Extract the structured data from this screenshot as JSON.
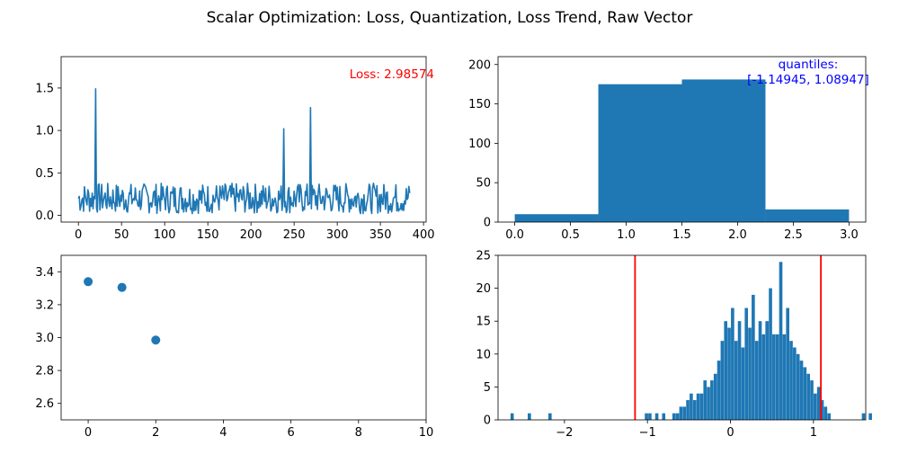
{
  "figure_title": "Scalar Optimization: Loss, Quantization, Loss Trend, Raw Vector",
  "chart_data": [
    {
      "type": "line",
      "panel": "top-left",
      "title": "",
      "xlabel": "",
      "ylabel": "",
      "xlim": [
        -20,
        403
      ],
      "ylim": [
        -0.08,
        1.87
      ],
      "xticks": [
        0,
        50,
        100,
        150,
        200,
        250,
        300,
        350,
        400
      ],
      "yticks": [
        0.0,
        0.5,
        1.0,
        1.5
      ],
      "ytick_labels": [
        "0.0",
        "0.5",
        "1.0",
        "1.5"
      ],
      "n_points": 385,
      "baseline_range": [
        0.02,
        0.38
      ],
      "spikes": [
        {
          "x": 20,
          "y": 1.49
        },
        {
          "x": 238,
          "y": 1.02
        },
        {
          "x": 269,
          "y": 1.27
        }
      ],
      "annotation": {
        "text": "Loss: 2.98574",
        "color": "#ff0000",
        "position": "top-right"
      },
      "color": "#1f77b4"
    },
    {
      "type": "bar",
      "panel": "top-right",
      "title": "",
      "xlim": [
        -0.15,
        3.15
      ],
      "ylim": [
        0,
        210
      ],
      "xticks": [
        0.0,
        0.5,
        1.0,
        1.5,
        2.0,
        2.5,
        3.0
      ],
      "xtick_labels": [
        "0.0",
        "0.5",
        "1.0",
        "1.5",
        "2.0",
        "2.5",
        "3.0"
      ],
      "yticks": [
        0,
        50,
        100,
        150,
        200
      ],
      "bins": [
        {
          "x0": 0.0,
          "x1": 0.75,
          "value": 10
        },
        {
          "x0": 0.75,
          "x1": 1.5,
          "value": 175
        },
        {
          "x0": 1.5,
          "x1": 2.25,
          "value": 181
        },
        {
          "x0": 2.25,
          "x1": 3.0,
          "value": 16
        }
      ],
      "annotation": {
        "text_line1": "quantiles:",
        "text_line2": "[-1.14945, 1.08947]",
        "color": "#0000ff",
        "position": "top-right"
      },
      "color": "#1f77b4"
    },
    {
      "type": "scatter",
      "panel": "bottom-left",
      "title": "",
      "xlim": [
        -0.8,
        10
      ],
      "ylim": [
        2.5,
        3.5
      ],
      "xticks": [
        0,
        2,
        4,
        6,
        8,
        10
      ],
      "yticks": [
        2.6,
        2.8,
        3.0,
        3.2,
        3.4
      ],
      "ytick_labels": [
        "2.6",
        "2.8",
        "3.0",
        "3.2",
        "3.4"
      ],
      "x": [
        0,
        1,
        2
      ],
      "y": [
        3.34,
        3.305,
        2.985
      ],
      "color": "#1f77b4"
    },
    {
      "type": "bar",
      "panel": "bottom-right",
      "title": "",
      "xlim": [
        -2.8,
        1.63
      ],
      "ylim": [
        0,
        25
      ],
      "xticks": [
        -2,
        -1,
        0,
        1
      ],
      "xtick_labels": [
        "−2",
        "−1",
        "0",
        "1"
      ],
      "yticks": [
        0,
        5,
        10,
        15,
        20,
        25
      ],
      "bin_start": -2.65,
      "bin_width": 0.0415,
      "counts": [
        1,
        0,
        0,
        0,
        0,
        1,
        0,
        0,
        0,
        0,
        0,
        1,
        0,
        0,
        0,
        0,
        0,
        0,
        0,
        0,
        0,
        0,
        0,
        0,
        0,
        0,
        0,
        0,
        0,
        0,
        0,
        0,
        0,
        0,
        0,
        0,
        0,
        0,
        0,
        1,
        1,
        0,
        1,
        0,
        1,
        0,
        0,
        1,
        1,
        2,
        2,
        3,
        4,
        3,
        4,
        4,
        6,
        5,
        6,
        7,
        9,
        12,
        15,
        14,
        17,
        12,
        15,
        11,
        17,
        14,
        19,
        12,
        15,
        13,
        15,
        20,
        13,
        13,
        24,
        13,
        17,
        12,
        11,
        10,
        9,
        8,
        7,
        6,
        4,
        5,
        3,
        2,
        1,
        0,
        0,
        0,
        0,
        0,
        0,
        0,
        0,
        0,
        1,
        0,
        1
      ],
      "vlines": [
        -1.14945,
        1.08947
      ],
      "vline_color": "#ff0000",
      "color": "#1f77b4"
    }
  ]
}
